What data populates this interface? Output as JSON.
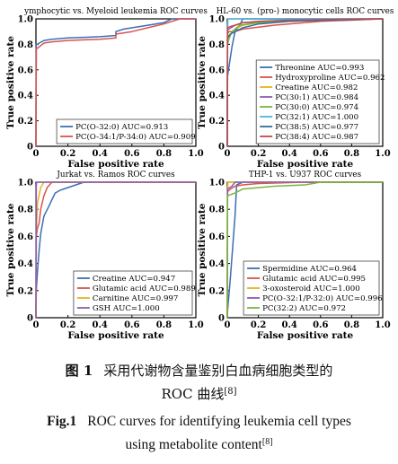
{
  "chart_data": [
    {
      "type": "line",
      "title": "ymphocytic vs. Myeloid leukemia ROC curves",
      "xlabel": "False positive rate",
      "ylabel": "True positive rate",
      "xlim": [
        0,
        1.0
      ],
      "ylim": [
        0,
        1.0
      ],
      "xticks": [
        "0",
        "0.2",
        "0.4",
        "0.6",
        "0.8",
        "1.0"
      ],
      "yticks": [
        "0",
        "0.2",
        "0.4",
        "0.6",
        "0.8",
        "1.0"
      ],
      "legend_position": "bottom-right",
      "series": [
        {
          "name": "PC(O-32:0) AUC=0.913",
          "color": "#3a6fb5",
          "x": [
            0,
            0.002,
            0.01,
            0.02,
            0.05,
            0.1,
            0.2,
            0.3,
            0.4,
            0.5,
            0.5,
            0.55,
            0.7,
            0.8,
            0.85,
            1.0
          ],
          "y": [
            0,
            0.8,
            0.8,
            0.81,
            0.83,
            0.84,
            0.85,
            0.855,
            0.86,
            0.87,
            0.9,
            0.92,
            0.95,
            0.97,
            1.0,
            1.0
          ]
        },
        {
          "name": "PC(O-34:1/P-34:0) AUC=0.909",
          "color": "#d9534f",
          "x": [
            0,
            0.002,
            0.01,
            0.03,
            0.05,
            0.1,
            0.2,
            0.3,
            0.4,
            0.5,
            0.5,
            0.6,
            0.7,
            0.8,
            0.9,
            1.0
          ],
          "y": [
            0,
            0.77,
            0.77,
            0.79,
            0.81,
            0.82,
            0.83,
            0.835,
            0.84,
            0.85,
            0.88,
            0.9,
            0.93,
            0.96,
            1.0,
            1.0
          ]
        }
      ]
    },
    {
      "type": "line",
      "title": "HL-60 vs. (pro-) monocytic cells ROC curves",
      "xlabel": "False positive rate",
      "ylabel": "True positive rate",
      "xlim": [
        0,
        1.0
      ],
      "ylim": [
        0,
        1.0
      ],
      "xticks": [
        "0",
        "0.2",
        "0.4",
        "0.6",
        "0.8",
        "1.0"
      ],
      "yticks": [
        "0",
        "0.2",
        "0.4",
        "0.6",
        "0.8",
        "1.0"
      ],
      "legend_position": "bottom-right",
      "series": [
        {
          "name": "Threonine AUC=0.993",
          "color": "#3a6fb5",
          "x": [
            0,
            0.002,
            0.03,
            0.05,
            0.08,
            0.1,
            1.0
          ],
          "y": [
            0,
            0.55,
            0.78,
            0.9,
            0.95,
            1.0,
            1.0
          ]
        },
        {
          "name": "Hydroxyproline AUC=0.962",
          "color": "#d9534f",
          "x": [
            0,
            0.002,
            0.01,
            0.05,
            0.1,
            0.3,
            0.6,
            1.0
          ],
          "y": [
            0,
            0.88,
            0.9,
            0.9,
            0.92,
            0.95,
            0.98,
            1.0
          ]
        },
        {
          "name": "Creatine AUC=0.982",
          "color": "#e6b51e",
          "x": [
            0,
            0.002,
            0.02,
            0.05,
            0.1,
            0.2,
            0.4,
            0.6,
            1.0
          ],
          "y": [
            0,
            0.86,
            0.88,
            0.92,
            0.95,
            0.97,
            0.98,
            0.99,
            1.0
          ]
        },
        {
          "name": "PC(30:1) AUC=0.984",
          "color": "#8d5cb0",
          "x": [
            0,
            0.002,
            0.01,
            0.05,
            0.1,
            0.3,
            0.5,
            1.0
          ],
          "y": [
            0,
            0.91,
            0.92,
            0.95,
            0.97,
            0.98,
            0.99,
            1.0
          ]
        },
        {
          "name": "PC(30:0) AUC=0.974",
          "color": "#7ab43c",
          "x": [
            0,
            0.002,
            0.01,
            0.03,
            0.08,
            0.2,
            0.5,
            1.0
          ],
          "y": [
            0,
            0.8,
            0.84,
            0.9,
            0.95,
            0.97,
            0.99,
            1.0
          ]
        },
        {
          "name": "PC(32:1) AUC=1.000",
          "color": "#4fb5e0",
          "x": [
            0,
            0.002,
            0.004,
            1.0
          ],
          "y": [
            0,
            0.9,
            1.0,
            1.0
          ]
        },
        {
          "name": "PC(38:5) AUC=0.977",
          "color": "#2f6f9e",
          "x": [
            0,
            0.002,
            0.02,
            0.05,
            0.1,
            0.2,
            0.4,
            1.0
          ],
          "y": [
            0,
            0.85,
            0.88,
            0.9,
            0.93,
            0.96,
            0.98,
            1.0
          ]
        },
        {
          "name": "PC(38:4) AUC=0.987",
          "color": "#c24a4a",
          "x": [
            0,
            0.002,
            0.02,
            0.05,
            0.1,
            0.2,
            0.4,
            1.0
          ],
          "y": [
            0,
            0.93,
            0.94,
            0.95,
            0.97,
            0.98,
            0.99,
            1.0
          ]
        }
      ]
    },
    {
      "type": "line",
      "title": "Jurkat vs. Ramos ROC curves",
      "xlabel": "False positive rate",
      "ylabel": "True positive rate",
      "xlim": [
        0,
        1.0
      ],
      "ylim": [
        0,
        1.0
      ],
      "xticks": [
        "0",
        "0.2",
        "0.4",
        "0.6",
        "0.8",
        "1.0"
      ],
      "yticks": [
        "0",
        "0.2",
        "0.4",
        "0.6",
        "0.8",
        "1.0"
      ],
      "legend_position": "bottom-right",
      "series": [
        {
          "name": "Creatine AUC=0.947",
          "color": "#3a6fb5",
          "x": [
            0,
            0.002,
            0.01,
            0.02,
            0.03,
            0.05,
            0.08,
            0.1,
            0.12,
            0.15,
            0.2,
            0.25,
            0.3,
            0.5,
            1.0
          ],
          "y": [
            0,
            0.2,
            0.35,
            0.5,
            0.62,
            0.75,
            0.82,
            0.87,
            0.92,
            0.94,
            0.96,
            0.98,
            1.0,
            1.0,
            1.0
          ]
        },
        {
          "name": "Glutamic acid AUC=0.989",
          "color": "#d9534f",
          "x": [
            0,
            0.002,
            0.01,
            0.02,
            0.03,
            0.05,
            0.07,
            0.1,
            1.0
          ],
          "y": [
            0,
            0.6,
            0.66,
            0.7,
            0.8,
            0.9,
            0.96,
            1.0,
            1.0
          ]
        },
        {
          "name": "Carnitine AUC=0.997",
          "color": "#e6b51e",
          "x": [
            0,
            0.002,
            0.01,
            0.03,
            0.05,
            1.0
          ],
          "y": [
            0,
            0.62,
            0.85,
            0.96,
            1.0,
            1.0
          ]
        },
        {
          "name": "GSH AUC=1.000",
          "color": "#8d5cb0",
          "x": [
            0,
            0.002,
            0.004,
            1.0
          ],
          "y": [
            0,
            0.97,
            1.0,
            1.0
          ]
        }
      ]
    },
    {
      "type": "line",
      "title": "THP-1 vs. U937 ROC curves",
      "xlabel": "False positive rate",
      "ylabel": "True positive rate",
      "xlim": [
        0,
        1.0
      ],
      "ylim": [
        0,
        1.0
      ],
      "xticks": [
        "0",
        "0.2",
        "0.4",
        "0.6",
        "0.8",
        "1.0"
      ],
      "yticks": [
        "0",
        "0.2",
        "0.4",
        "0.6",
        "0.8",
        "1.0"
      ],
      "legend_position": "bottom-right",
      "series": [
        {
          "name": "Spermidine AUC=0.964",
          "color": "#3a6fb5",
          "x": [
            0,
            0.002,
            0.02,
            0.04,
            0.05,
            0.06,
            0.1,
            0.3,
            1.0
          ],
          "y": [
            0,
            0.05,
            0.3,
            0.6,
            0.75,
            0.98,
            1.0,
            1.0,
            1.0
          ]
        },
        {
          "name": "Glutamic acid AUC=0.995",
          "color": "#d9534f",
          "x": [
            0,
            0.002,
            0.02,
            0.05,
            0.1,
            0.2,
            0.5,
            1.0
          ],
          "y": [
            0,
            0.93,
            0.95,
            0.97,
            0.98,
            0.99,
            1.0,
            1.0
          ]
        },
        {
          "name": "3-oxosteroid AUC=1.000",
          "color": "#e6b51e",
          "x": [
            0,
            0.002,
            0.004,
            1.0
          ],
          "y": [
            0,
            0.92,
            1.0,
            1.0
          ]
        },
        {
          "name": "PC(O-32:1/P-32:0) AUC=0.996",
          "color": "#8d5cb0",
          "x": [
            0,
            0.002,
            0.03,
            0.05,
            1.0
          ],
          "y": [
            0,
            0.95,
            0.97,
            1.0,
            1.0
          ]
        },
        {
          "name": "PC(32:2) AUC=0.972",
          "color": "#7ab43c",
          "x": [
            0,
            0.002,
            0.05,
            0.1,
            0.3,
            0.5,
            0.6,
            1.0
          ],
          "y": [
            0,
            0.9,
            0.92,
            0.95,
            0.97,
            0.98,
            1.0,
            1.0
          ]
        }
      ]
    }
  ],
  "caption": {
    "zh_label": "图 1",
    "zh_text": "采用代谢物含量鉴别白血病细胞类型的",
    "zh_text_line2": "ROC 曲线",
    "en_label": "Fig.1",
    "en_text": "ROC curves for identifying leukemia cell types",
    "en_text_line2": "using metabolite content",
    "ref": "[8]"
  }
}
